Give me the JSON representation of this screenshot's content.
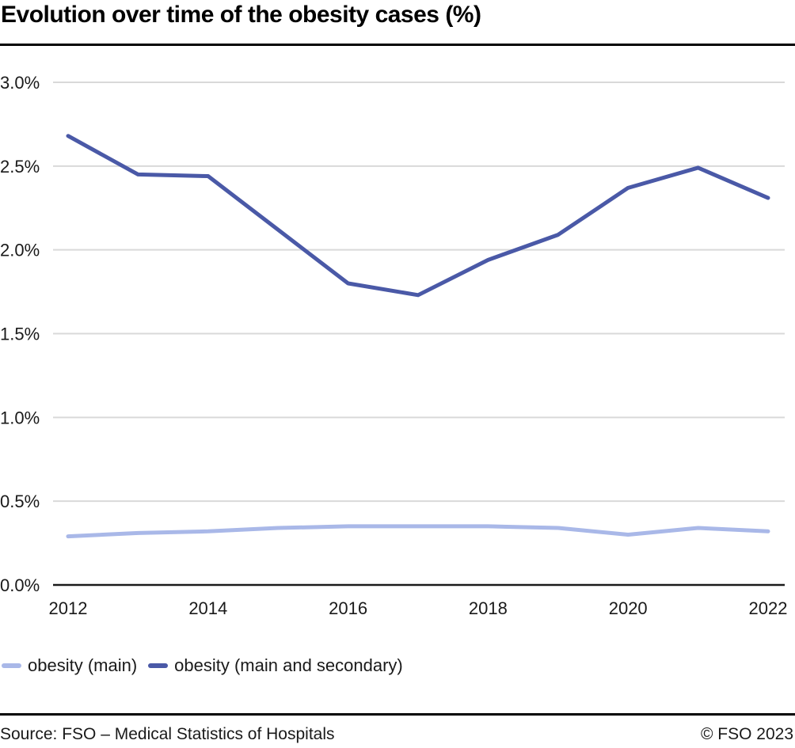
{
  "chart_data": {
    "type": "line",
    "title": "Evolution over time of the obesity cases (%)",
    "x": [
      2012,
      2013,
      2014,
      2015,
      2016,
      2017,
      2018,
      2019,
      2020,
      2021,
      2022
    ],
    "series": [
      {
        "name": "obesity (main)",
        "color": "#a9b8e8",
        "values": [
          0.29,
          0.31,
          0.32,
          0.34,
          0.35,
          0.35,
          0.35,
          0.34,
          0.3,
          0.34,
          0.32
        ]
      },
      {
        "name": "obesity (main and secondary)",
        "color": "#4a59a7",
        "values": [
          2.68,
          2.45,
          2.44,
          2.12,
          1.8,
          1.73,
          1.94,
          2.09,
          2.37,
          2.49,
          2.31
        ]
      }
    ],
    "xlabel": "",
    "ylabel": "",
    "xticks": [
      2012,
      2014,
      2016,
      2018,
      2020,
      2022
    ],
    "yticks": [
      0.0,
      0.5,
      1.0,
      1.5,
      2.0,
      2.5,
      3.0
    ],
    "ytick_suffix": "%",
    "ylim": [
      0,
      3.0
    ],
    "grid": true,
    "grid_color": "#d9d9d9",
    "axis_color": "#1a1a1a",
    "legend_position": "bottom"
  },
  "footer": {
    "source": "Source: FSO – Medical Statistics of Hospitals",
    "copyright": "© FSO 2023"
  }
}
